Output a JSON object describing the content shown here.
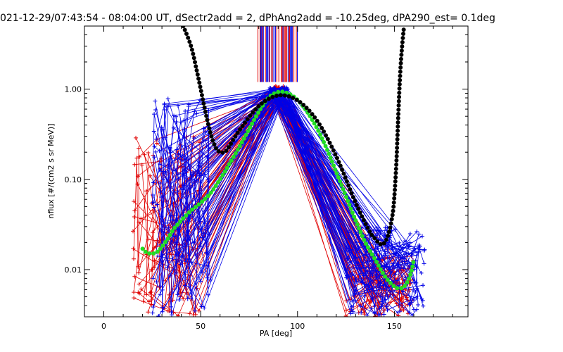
{
  "chart_data": {
    "type": "line",
    "title": "021-12-29/07:43:54 - 08:04:00 UT, dSectr2add = 2, dPhAng2add = -10.25deg, dPA290_est=    0.1deg",
    "xlabel": "PA [deg]",
    "ylabel": "nflux [#/(cm2 s sr MeV)]",
    "xlim": [
      -10,
      188
    ],
    "ylim": [
      0.003,
      5
    ],
    "yscale": "log",
    "xticks": [
      "0",
      "50",
      "100",
      "150"
    ],
    "yticks": [
      "0.01",
      "0.10",
      "1.00"
    ],
    "grid": false,
    "legend": "none",
    "colors": {
      "red_series": "#e00000",
      "blue_series": "#0000e6",
      "green_fit": "#22dd22",
      "black_fit": "#000000",
      "axes": "#000000"
    },
    "series": [
      {
        "color": "green",
        "style": "thick-dots",
        "x": [
          20,
          22,
          25,
          28,
          30,
          33,
          36,
          40,
          45,
          50,
          55,
          60,
          65,
          70,
          75,
          80,
          85,
          90,
          95,
          100,
          105,
          110,
          115,
          120,
          125,
          130,
          135,
          140,
          145,
          150,
          153,
          155,
          157,
          159,
          160
        ],
        "y": [
          0.017,
          0.0155,
          0.015,
          0.016,
          0.018,
          0.022,
          0.028,
          0.035,
          0.045,
          0.055,
          0.07,
          0.1,
          0.15,
          0.23,
          0.36,
          0.56,
          0.8,
          0.93,
          0.9,
          0.76,
          0.56,
          0.37,
          0.22,
          0.12,
          0.065,
          0.035,
          0.02,
          0.013,
          0.0085,
          0.0065,
          0.0062,
          0.0065,
          0.0075,
          0.01,
          0.013
        ]
      },
      {
        "color": "black",
        "style": "thick-dots",
        "x": [
          41,
          45,
          48,
          50,
          52,
          54,
          56,
          58,
          60,
          62,
          64,
          70,
          80,
          90,
          100,
          110,
          120,
          130,
          137,
          140,
          143,
          145,
          147,
          149,
          150,
          151,
          152,
          153,
          154,
          155
        ],
        "y": [
          5,
          3.0,
          1.6,
          1.0,
          0.62,
          0.4,
          0.28,
          0.22,
          0.2,
          0.2,
          0.22,
          0.35,
          0.65,
          0.85,
          0.75,
          0.45,
          0.18,
          0.055,
          0.027,
          0.022,
          0.019,
          0.02,
          0.025,
          0.04,
          0.065,
          0.15,
          0.5,
          1.5,
          3.0,
          5
        ]
      }
    ],
    "bundles": [
      {
        "color": "red",
        "pa_lo_range": [
          15,
          50
        ],
        "lo_flux_range": [
          0.003,
          0.3
        ],
        "peak_pa_range": [
          87,
          93
        ],
        "peak_flux_range": [
          0.8,
          1.1
        ],
        "pa_hi_range": [
          125,
          160
        ],
        "hi_flux_range": [
          0.003,
          0.015
        ],
        "count": 55
      },
      {
        "color": "blue",
        "pa_lo_range": [
          25,
          55
        ],
        "lo_flux_range": [
          0.003,
          0.8
        ],
        "peak_pa_range": [
          85,
          95
        ],
        "peak_flux_range": [
          0.85,
          1.05
        ],
        "pa_hi_range": [
          125,
          167
        ],
        "hi_flux_range": [
          0.003,
          0.03
        ],
        "count": 75
      }
    ],
    "vertical_marks": {
      "colors": [
        "red",
        "blue"
      ],
      "pa_range": [
        77,
        100
      ],
      "flux_range": [
        1.2,
        5
      ],
      "count": 45
    }
  }
}
